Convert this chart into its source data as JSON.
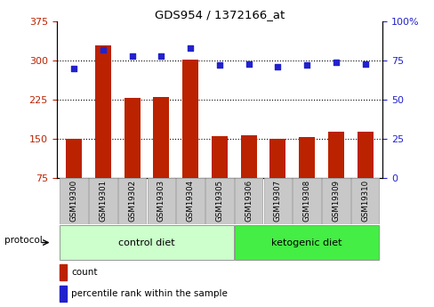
{
  "title": "GDS954 / 1372166_at",
  "samples": [
    "GSM19300",
    "GSM19301",
    "GSM19302",
    "GSM19303",
    "GSM19304",
    "GSM19305",
    "GSM19306",
    "GSM19307",
    "GSM19308",
    "GSM19309",
    "GSM19310"
  ],
  "bar_values": [
    150,
    330,
    228,
    230,
    302,
    155,
    157,
    150,
    153,
    163,
    163
  ],
  "scatter_values": [
    70,
    82,
    78,
    78,
    83,
    72,
    73,
    71,
    72,
    74,
    73
  ],
  "bar_color": "#bb2200",
  "scatter_color": "#2222cc",
  "ylim_left": [
    75,
    375
  ],
  "ylim_right": [
    0,
    100
  ],
  "yticks_left": [
    75,
    150,
    225,
    300,
    375
  ],
  "yticks_right": [
    0,
    25,
    50,
    75,
    100
  ],
  "ytick_labels_right": [
    "0",
    "25",
    "50",
    "75",
    "100%"
  ],
  "control_diet_indices": [
    0,
    1,
    2,
    3,
    4,
    5
  ],
  "ketogenic_diet_indices": [
    6,
    7,
    8,
    9,
    10
  ],
  "control_diet_label": "control diet",
  "ketogenic_diet_label": "ketogenic diet",
  "protocol_label": "protocol",
  "legend_bar_label": "count",
  "legend_scatter_label": "percentile rank within the sample",
  "bg_color_plot": "#ffffff",
  "bg_color_xtick": "#c8c8c8",
  "control_band_color": "#ccffcc",
  "ketogenic_band_color": "#44ee44",
  "grid_color": "#000000",
  "bar_width": 0.55
}
